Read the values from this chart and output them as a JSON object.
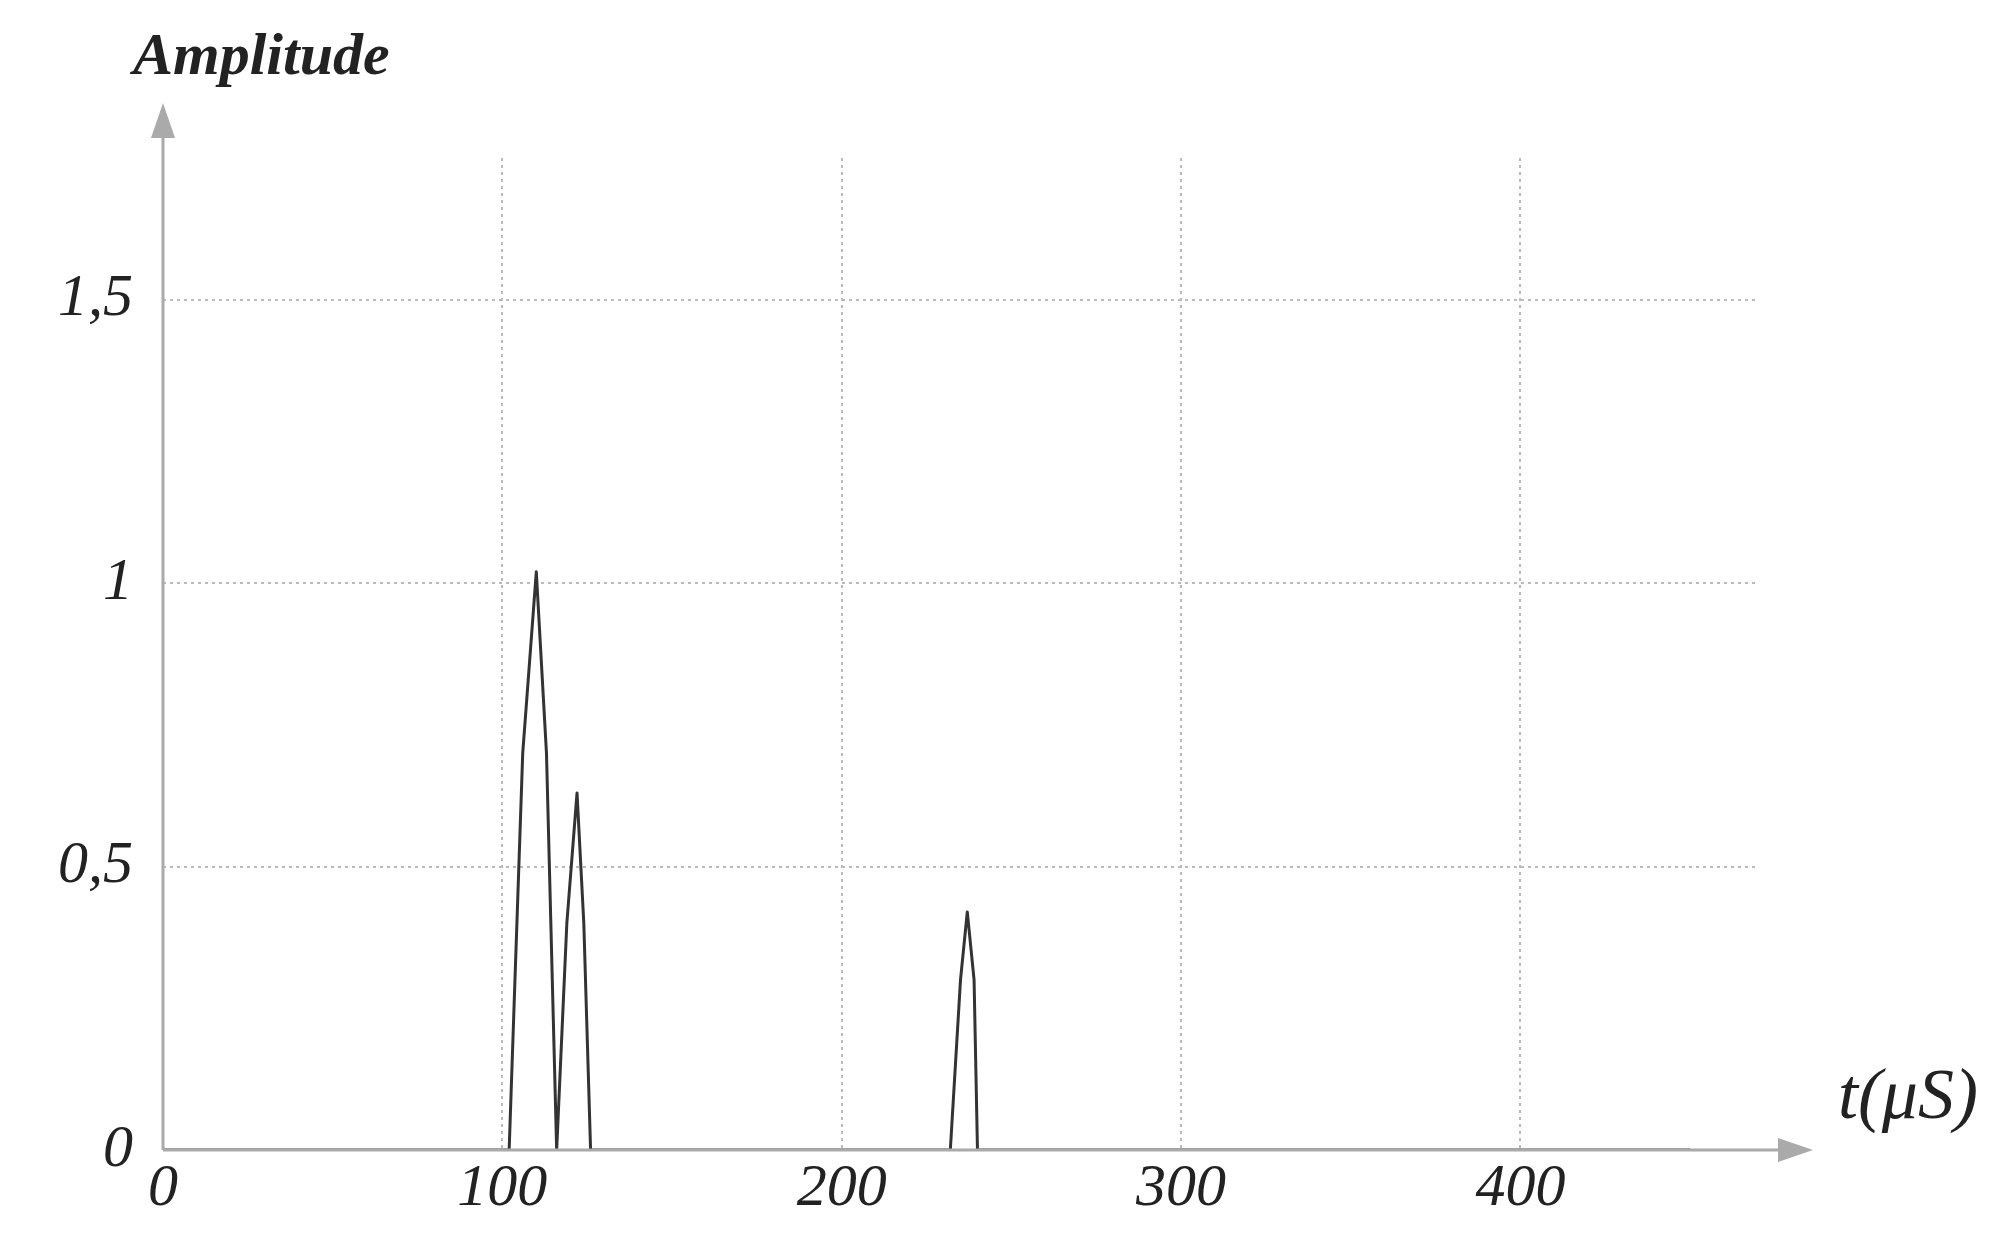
{
  "chart_data": {
    "type": "line",
    "xlabel": "t(μS)",
    "ylabel": "Amplitude",
    "x": [
      0,
      102,
      106,
      110,
      113,
      116,
      119,
      122,
      124,
      126,
      232,
      235,
      237,
      239,
      240,
      450
    ],
    "series": [
      {
        "color": "#333333",
        "values": [
          0,
          0,
          0.7,
          1.02,
          0.7,
          0,
          0.4,
          0.63,
          0.4,
          0,
          0,
          0.3,
          0.42,
          0.3,
          0,
          0
        ]
      }
    ],
    "xlim": [
      0,
      470
    ],
    "ylim": [
      0,
      1.75
    ],
    "xticks": [
      0,
      100,
      200,
      300,
      400
    ],
    "yticks": [
      0,
      {
        "value": 0.5,
        "label": "0,5"
      },
      1,
      {
        "value": 1.5,
        "label": "1,5"
      }
    ],
    "grid": true,
    "marker": "none",
    "line_style": "solid",
    "legend": false
  }
}
